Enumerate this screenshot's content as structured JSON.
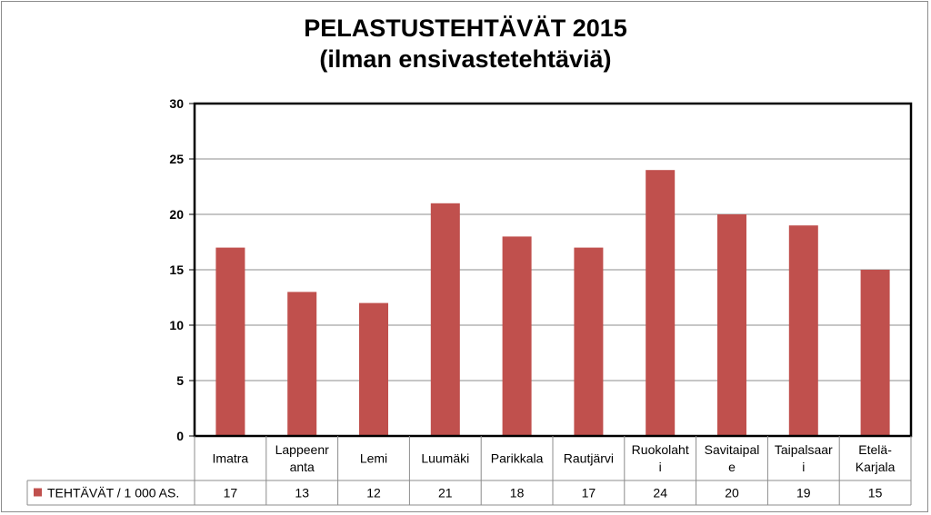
{
  "chart_data": {
    "type": "bar",
    "title": "PELASTUSTEHTÄVÄT 2015",
    "subtitle": "(ilman ensivastetehtäviä)",
    "xlabel": "",
    "ylabel": "",
    "ylim": [
      0,
      30
    ],
    "yticks": [
      0,
      5,
      10,
      15,
      20,
      25,
      30
    ],
    "grid": true,
    "legend_placement": "data-table-left",
    "categories": [
      [
        "Imatra"
      ],
      [
        "Lappeenr",
        "anta"
      ],
      [
        "Lemi"
      ],
      [
        "Luumäki"
      ],
      [
        "Parikkala"
      ],
      [
        "Rautjärvi"
      ],
      [
        "Ruokolaht",
        "i"
      ],
      [
        "Savitaipal",
        "e"
      ],
      [
        "Taipalsaar",
        "i"
      ],
      [
        "Etelä-",
        "Karjala"
      ]
    ],
    "series": [
      {
        "name": "TEHTÄVÄT / 1 000 AS.",
        "color": "#c0504d",
        "values": [
          17,
          13,
          12,
          21,
          18,
          17,
          24,
          20,
          19,
          15
        ]
      }
    ]
  }
}
